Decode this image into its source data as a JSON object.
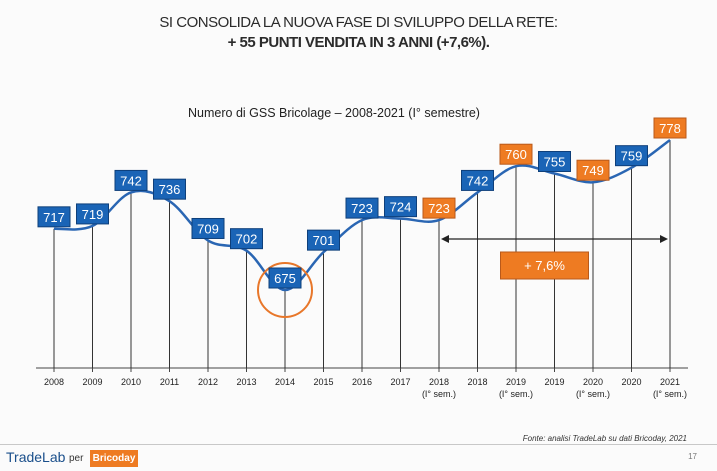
{
  "title": {
    "line1": "SI CONSOLIDA LA NUOVA FASE DI SVILUPPO DELLA RETE:",
    "line2": "+ 55 PUNTI VENDITA IN 3 ANNI (+7,6%)."
  },
  "chart_data": {
    "type": "line",
    "title": "Numero di GSS Bricolage – 2008-2021 (I° semestre)",
    "xlabel": "",
    "ylabel": "",
    "grid": false,
    "categories": [
      "2008",
      "2009",
      "2010",
      "2011",
      "2012",
      "2013",
      "2014",
      "2015",
      "2016",
      "2017",
      "2018",
      "2018",
      "2019",
      "2019",
      "2020",
      "2020",
      "2021"
    ],
    "sublabels": [
      "",
      "",
      "",
      "",
      "",
      "",
      "",
      "",
      "",
      "",
      "(I° sem.)",
      "",
      "(I° sem.)",
      "",
      "(I° sem.)",
      "",
      "(I° sem.)"
    ],
    "values": [
      717,
      719,
      742,
      736,
      709,
      702,
      675,
      701,
      723,
      724,
      723,
      742,
      760,
      755,
      749,
      759,
      778
    ],
    "label_colors": [
      "blue",
      "blue",
      "blue",
      "blue",
      "blue",
      "blue",
      "blue",
      "blue",
      "blue",
      "blue",
      "orange",
      "blue",
      "orange",
      "blue",
      "orange",
      "blue",
      "orange"
    ],
    "highlight_index": 6,
    "growth_annotation": {
      "text": "+ 7,6%",
      "from_index": 10,
      "to_index": 16
    },
    "ylim": [
      620,
      790
    ],
    "colors": {
      "line": "#2a66b3",
      "label_blue": "#1a64b6",
      "label_orange": "#ee7b22",
      "highlight_circle": "#e8772a"
    }
  },
  "source": "Fonte: analisi TradeLab su dati Bricoday, 2021",
  "footer": {
    "logo": "TradeLab",
    "per": "per",
    "brand": "Bricoday",
    "page_number": "17"
  }
}
